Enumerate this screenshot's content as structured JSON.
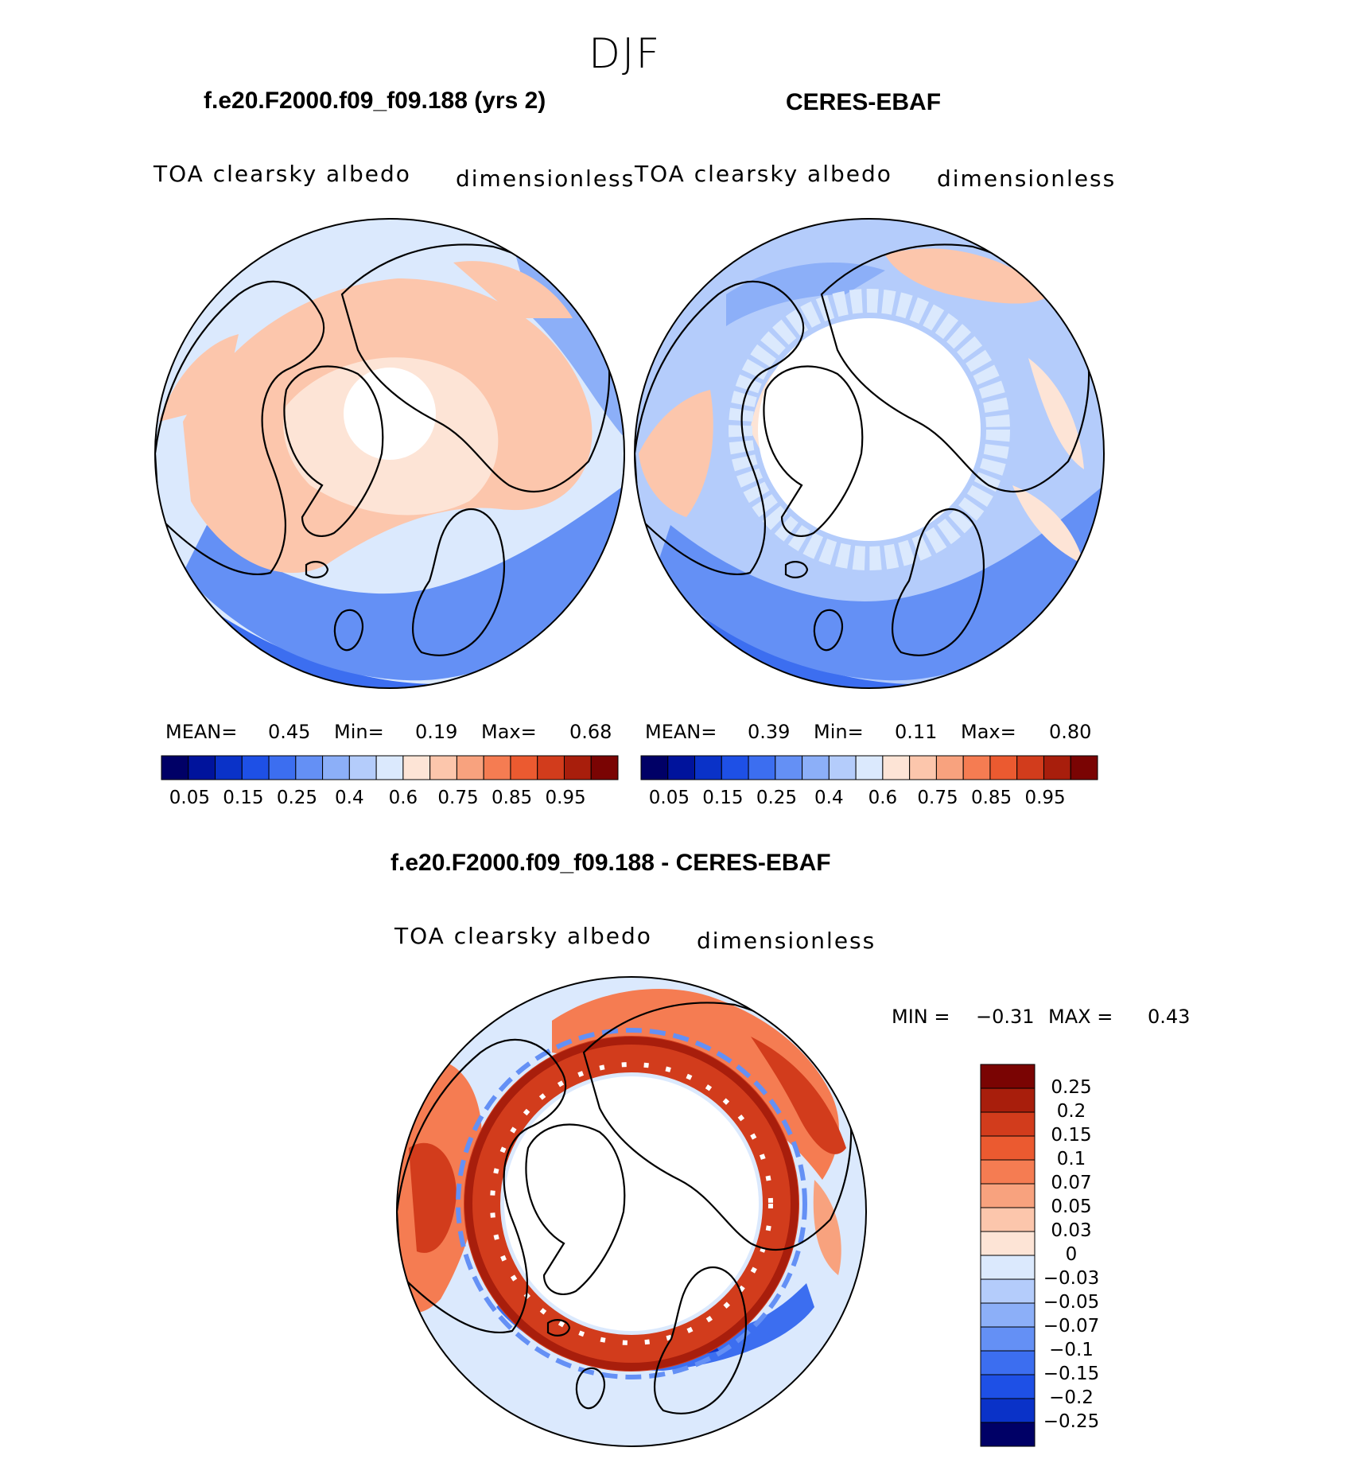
{
  "figure": {
    "season": "DJF",
    "land_outline_color": "#000000"
  },
  "panels": {
    "model": {
      "title": "f.e20.F2000.f09_f09.188 (yrs 2)",
      "variable": "TOA clearsky albedo",
      "units": "dimensionless",
      "stats": {
        "mean_label": "MEAN=",
        "mean": "0.45",
        "min_label": "Min=",
        "min": "0.19",
        "max_label": "Max=",
        "max": "0.68"
      },
      "field": {
        "polar_hole_edge_lat": 84,
        "ocean_albedo": 0.22,
        "land_albedo": 0.62,
        "ice_albedo": 0.65
      }
    },
    "obs": {
      "title": "CERES-EBAF",
      "variable": "TOA clearsky albedo",
      "units": "dimensionless",
      "stats": {
        "mean_label": "MEAN=",
        "mean": "0.39",
        "min_label": "Min=",
        "min": "0.11",
        "max_label": "Max=",
        "max": "0.80"
      },
      "field": {
        "polar_hole_edge_lat": 72,
        "ocean_albedo": 0.2,
        "land_albedo": 0.55,
        "ice_albedo": 0.45
      }
    },
    "diff": {
      "title": "f.e20.F2000.f09_f09.188 - CERES-EBAF",
      "variable": "TOA clearsky albedo",
      "units": "dimensionless",
      "minmax": {
        "min_label": "MIN =",
        "min": "−0.31",
        "max_label": "MAX =",
        "max": "0.43"
      },
      "field": {
        "polar_hole_edge_lat": 72,
        "ring_anomaly": 0.3,
        "atlantic_anomaly": -0.15
      }
    }
  },
  "chart_data": [
    {
      "type": "heatmap",
      "title": "f.e20.F2000.f09_f09.188 (yrs 2)",
      "projection": "north-polar-stereographic",
      "variable": "TOA clearsky albedo",
      "units": "dimensionless",
      "levels": [
        0.05,
        0.1,
        0.15,
        0.2,
        0.25,
        0.3,
        0.4,
        0.5,
        0.6,
        0.7,
        0.75,
        0.8,
        0.85,
        0.9,
        0.95
      ],
      "tick_labels": [
        "0.05",
        "0.15",
        "0.25",
        "0.4",
        "0.6",
        "0.75",
        "0.85",
        "0.95"
      ],
      "colors": [
        "#000066",
        "#00139c",
        "#0a32c8",
        "#1e50e6",
        "#3c6ef0",
        "#6490f5",
        "#8caff8",
        "#b4ccfb",
        "#dbe9fd",
        "#fde4d6",
        "#fcc6ac",
        "#f8a27e",
        "#f57c52",
        "#eb5a30",
        "#d23c1c",
        "#a81e0c",
        "#7a0403"
      ],
      "stats": {
        "mean": 0.45,
        "min": 0.19,
        "max": 0.68
      }
    },
    {
      "type": "heatmap",
      "title": "CERES-EBAF",
      "projection": "north-polar-stereographic",
      "variable": "TOA clearsky albedo",
      "units": "dimensionless",
      "levels": [
        0.05,
        0.1,
        0.15,
        0.2,
        0.25,
        0.3,
        0.4,
        0.5,
        0.6,
        0.7,
        0.75,
        0.8,
        0.85,
        0.9,
        0.95
      ],
      "tick_labels": [
        "0.05",
        "0.15",
        "0.25",
        "0.4",
        "0.6",
        "0.75",
        "0.85",
        "0.95"
      ],
      "colors": [
        "#000066",
        "#00139c",
        "#0a32c8",
        "#1e50e6",
        "#3c6ef0",
        "#6490f5",
        "#8caff8",
        "#b4ccfb",
        "#dbe9fd",
        "#fde4d6",
        "#fcc6ac",
        "#f8a27e",
        "#f57c52",
        "#eb5a30",
        "#d23c1c",
        "#a81e0c",
        "#7a0403"
      ],
      "stats": {
        "mean": 0.39,
        "min": 0.11,
        "max": 0.8
      }
    },
    {
      "type": "heatmap",
      "title": "f.e20.F2000.f09_f09.188 - CERES-EBAF",
      "projection": "north-polar-stereographic",
      "variable": "TOA clearsky albedo",
      "units": "dimensionless",
      "levels": [
        -0.25,
        -0.2,
        -0.15,
        -0.1,
        -0.07,
        -0.05,
        -0.03,
        0,
        0.03,
        0.05,
        0.07,
        0.1,
        0.15,
        0.2,
        0.25
      ],
      "tick_labels": [
        "0.25",
        "0.2",
        "0.15",
        "0.1",
        "0.07",
        "0.05",
        "0.03",
        "0",
        "−0.03",
        "−0.05",
        "−0.07",
        "−0.1",
        "−0.15",
        "−0.2",
        "−0.25"
      ],
      "colors": [
        "#7a0403",
        "#a81e0c",
        "#d23c1c",
        "#eb5a30",
        "#f57c52",
        "#f8a27e",
        "#fcc6ac",
        "#fde4d6",
        "#dbe9fd",
        "#b4ccfb",
        "#8caff8",
        "#6490f5",
        "#3c6ef0",
        "#1e50e6",
        "#0a32c8",
        "#000066"
      ],
      "stats": {
        "min": -0.31,
        "max": 0.43
      }
    }
  ]
}
